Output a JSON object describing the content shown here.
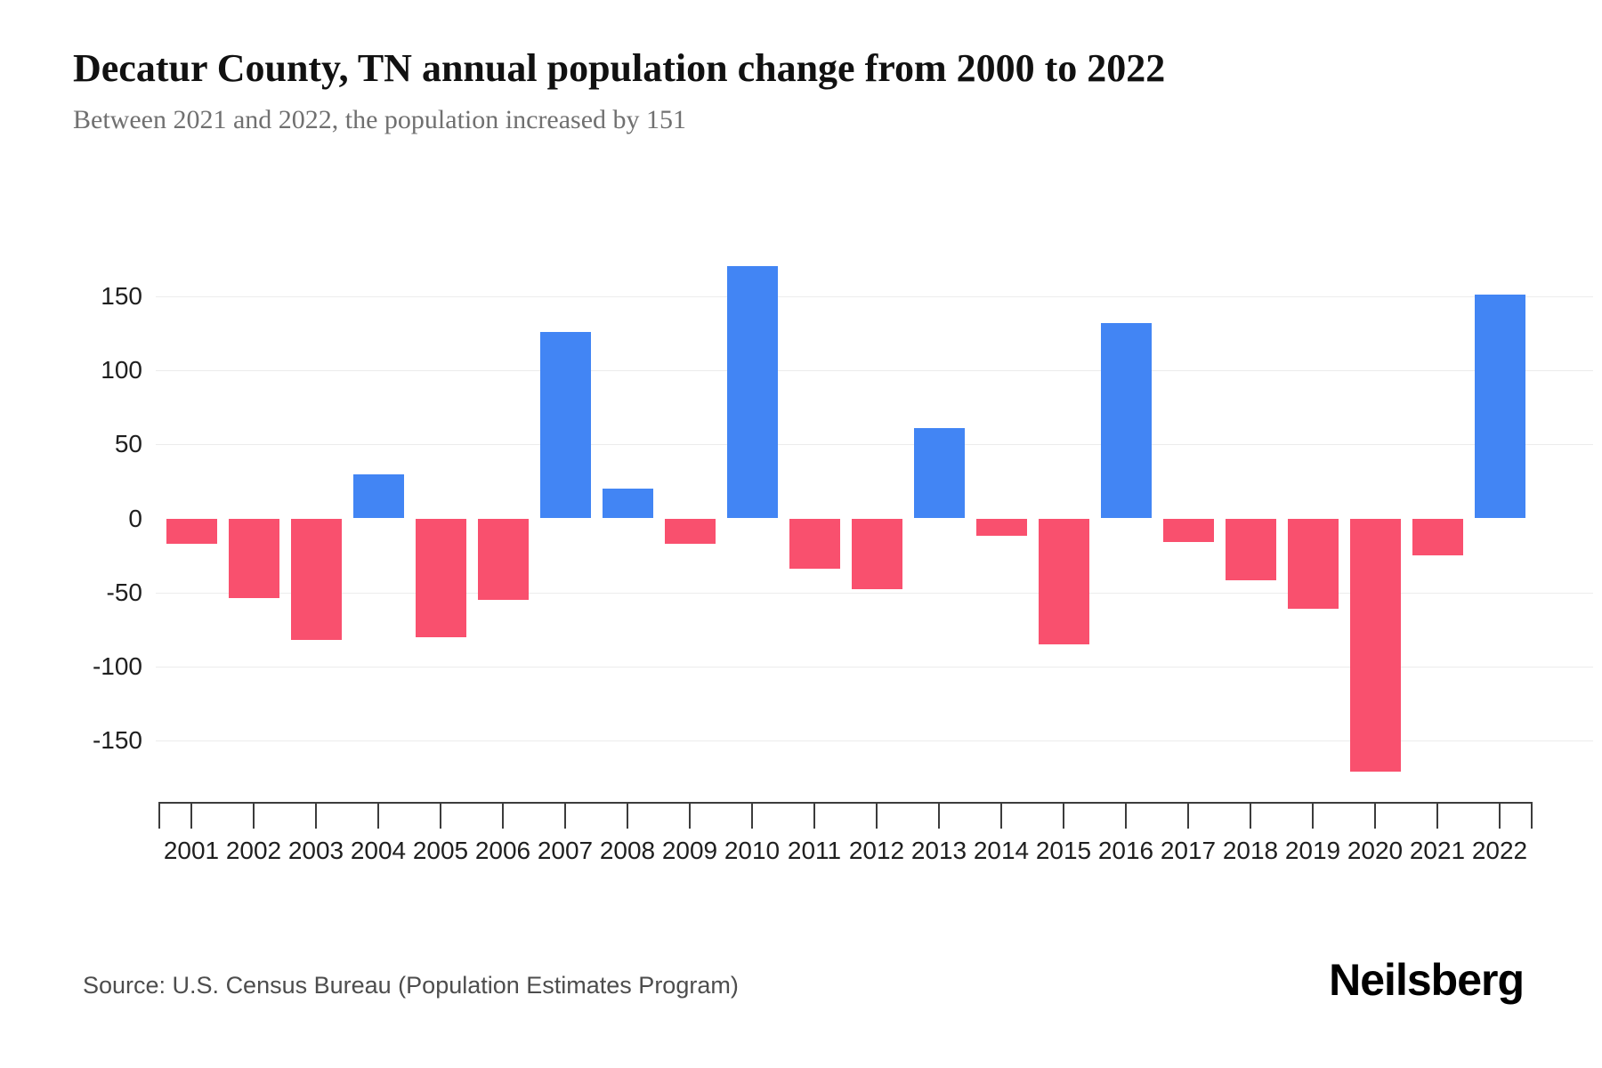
{
  "header": {
    "title": "Decatur County, TN annual population change from 2000 to 2022",
    "subtitle": "Between 2021 and 2022, the population increased by 151"
  },
  "footer": {
    "source": "Source: U.S. Census Bureau (Population Estimates Program)",
    "brand": "Neilsberg"
  },
  "chart_data": {
    "type": "bar",
    "title": "Decatur County, TN annual population change from 2000 to 2022",
    "subtitle": "Between 2021 and 2022, the population increased by 151",
    "categories": [
      "2001",
      "2002",
      "2003",
      "2004",
      "2005",
      "2006",
      "2007",
      "2008",
      "2009",
      "2010",
      "2011",
      "2012",
      "2013",
      "2014",
      "2015",
      "2016",
      "2017",
      "2018",
      "2019",
      "2020",
      "2021",
      "2022"
    ],
    "values": [
      -17,
      -54,
      -82,
      30,
      -80,
      -55,
      126,
      20,
      -17,
      170,
      -34,
      -48,
      61,
      -12,
      -85,
      132,
      -16,
      -42,
      -61,
      -171,
      -25,
      151
    ],
    "xlabel": "",
    "ylabel": "",
    "ylim": [
      -192,
      196
    ],
    "y_ticks": [
      150,
      100,
      50,
      0,
      -50,
      -100,
      -150
    ],
    "gridlines": [
      150,
      100,
      50,
      -50,
      -100,
      -150
    ],
    "grid": true,
    "legend_position": "none",
    "colors": {
      "positive": "#4285F4",
      "negative": "#F9506E",
      "gridline": "#ececec",
      "axis": "#3c3c3c"
    }
  }
}
